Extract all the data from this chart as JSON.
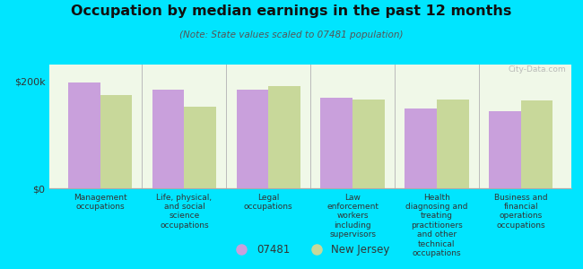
{
  "title": "Occupation by median earnings in the past 12 months",
  "subtitle": "(Note: State values scaled to 07481 population)",
  "categories": [
    "Management\noccupations",
    "Life, physical,\nand social\nscience\noccupations",
    "Legal\noccupations",
    "Law\nenforcement\nworkers\nincluding\nsupervisors",
    "Health\ndiagnosing and\ntreating\npractitioners\nand other\ntechnical\noccupations",
    "Business and\nfinancial\noperations\noccupations"
  ],
  "values_07481": [
    197000,
    183000,
    183000,
    168000,
    148000,
    143000
  ],
  "values_nj": [
    173000,
    152000,
    190000,
    165000,
    165000,
    163000
  ],
  "color_07481": "#c9a0dc",
  "color_nj": "#c8d89a",
  "background_chart": "#f0f8e8",
  "background_outer": "#00e5ff",
  "ylabel_ticks": [
    "$0",
    "$200k"
  ],
  "yticks": [
    0,
    200000
  ],
  "ylim": [
    0,
    230000
  ],
  "legend_07481": "07481",
  "legend_nj": "New Jersey",
  "watermark": "City-Data.com",
  "bar_width": 0.38
}
